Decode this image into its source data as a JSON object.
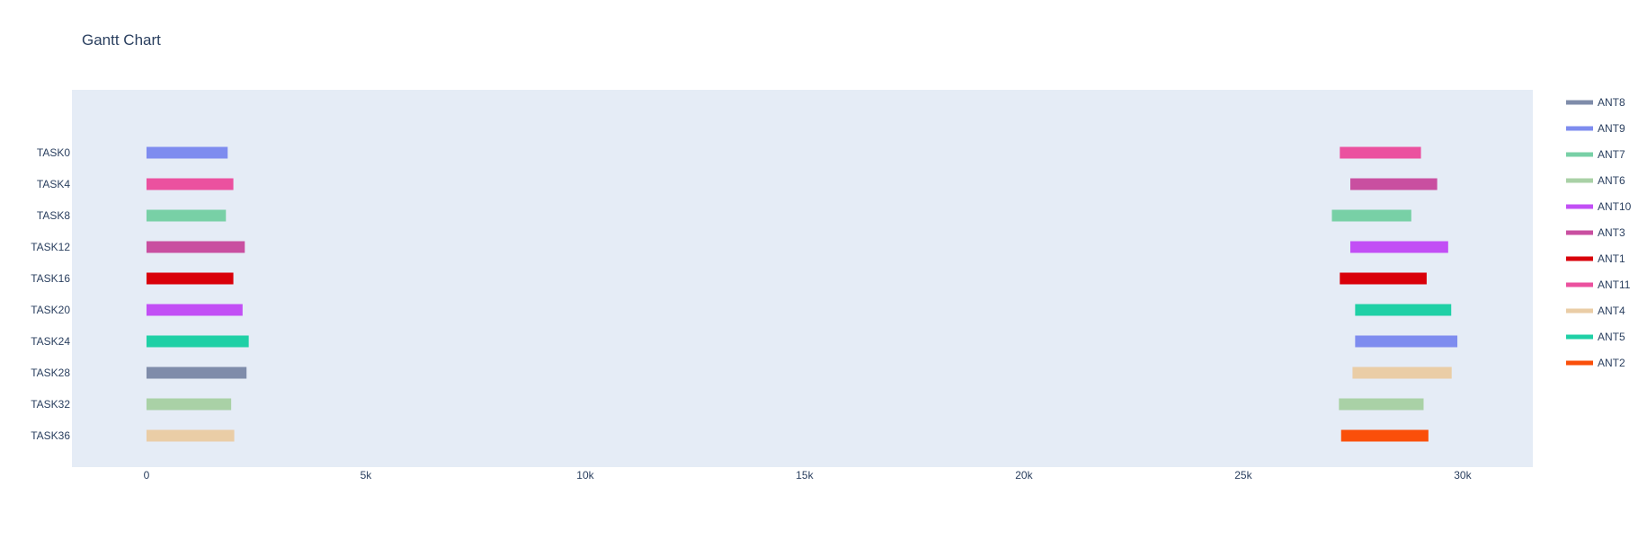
{
  "chart_data": {
    "type": "gantt",
    "title": "Gantt Chart",
    "xlabel": "",
    "ylabel": "",
    "xlim": [
      -1700,
      31600
    ],
    "xticks": [
      {
        "value": 0,
        "label": "0"
      },
      {
        "value": 5000,
        "label": "5k"
      },
      {
        "value": 10000,
        "label": "10k"
      },
      {
        "value": 15000,
        "label": "15k"
      },
      {
        "value": 20000,
        "label": "20k"
      },
      {
        "value": 25000,
        "label": "25k"
      },
      {
        "value": 30000,
        "label": "30k"
      }
    ],
    "categories": [
      "TASK0",
      "TASK4",
      "TASK8",
      "TASK12",
      "TASK16",
      "TASK20",
      "TASK24",
      "TASK28",
      "TASK32",
      "TASK36"
    ],
    "legend_position": "right",
    "series": [
      {
        "name": "ANT8",
        "color": "#7f8caa",
        "bars": [
          {
            "task": "TASK28",
            "start": 0,
            "end": 2280
          }
        ]
      },
      {
        "name": "ANT9",
        "color": "#7e8cef",
        "bars": [
          {
            "task": "TASK0",
            "start": 0,
            "end": 1850
          },
          {
            "task": "TASK24",
            "start": 27550,
            "end": 29880
          }
        ]
      },
      {
        "name": "ANT7",
        "color": "#78d0a6",
        "bars": [
          {
            "task": "TASK8",
            "start": 0,
            "end": 1810
          },
          {
            "task": "TASK8",
            "start": 27020,
            "end": 28830
          }
        ]
      },
      {
        "name": "ANT6",
        "color": "#a9d1a6",
        "bars": [
          {
            "task": "TASK32",
            "start": 0,
            "end": 1930
          },
          {
            "task": "TASK32",
            "start": 27180,
            "end": 29110
          }
        ]
      },
      {
        "name": "ANT10",
        "color": "#c24ff5",
        "bars": [
          {
            "task": "TASK20",
            "start": 0,
            "end": 2190
          },
          {
            "task": "TASK12",
            "start": 27440,
            "end": 29670
          }
        ]
      },
      {
        "name": "ANT3",
        "color": "#c94fa0",
        "bars": [
          {
            "task": "TASK12",
            "start": 0,
            "end": 2240
          },
          {
            "task": "TASK4",
            "start": 27440,
            "end": 29420
          }
        ]
      },
      {
        "name": "ANT1",
        "color": "#d9000a",
        "bars": [
          {
            "task": "TASK16",
            "start": 0,
            "end": 1980
          },
          {
            "task": "TASK16",
            "start": 27200,
            "end": 29180
          }
        ]
      },
      {
        "name": "ANT11",
        "color": "#eb519f",
        "bars": [
          {
            "task": "TASK4",
            "start": 0,
            "end": 1980
          },
          {
            "task": "TASK0",
            "start": 27200,
            "end": 29050
          }
        ]
      },
      {
        "name": "ANT4",
        "color": "#eacda6",
        "bars": [
          {
            "task": "TASK36",
            "start": 0,
            "end": 2000
          },
          {
            "task": "TASK28",
            "start": 27490,
            "end": 29750
          }
        ]
      },
      {
        "name": "ANT5",
        "color": "#1fd0a6",
        "bars": [
          {
            "task": "TASK24",
            "start": 0,
            "end": 2330
          },
          {
            "task": "TASK20",
            "start": 27550,
            "end": 29740
          }
        ]
      },
      {
        "name": "ANT2",
        "color": "#fa4f0a",
        "bars": [
          {
            "task": "TASK36",
            "start": 27230,
            "end": 29220
          }
        ]
      }
    ],
    "colors": {
      "plot_background": "#e5ecf6",
      "text": "#2a3f5f",
      "page_background": "#ffffff"
    }
  }
}
